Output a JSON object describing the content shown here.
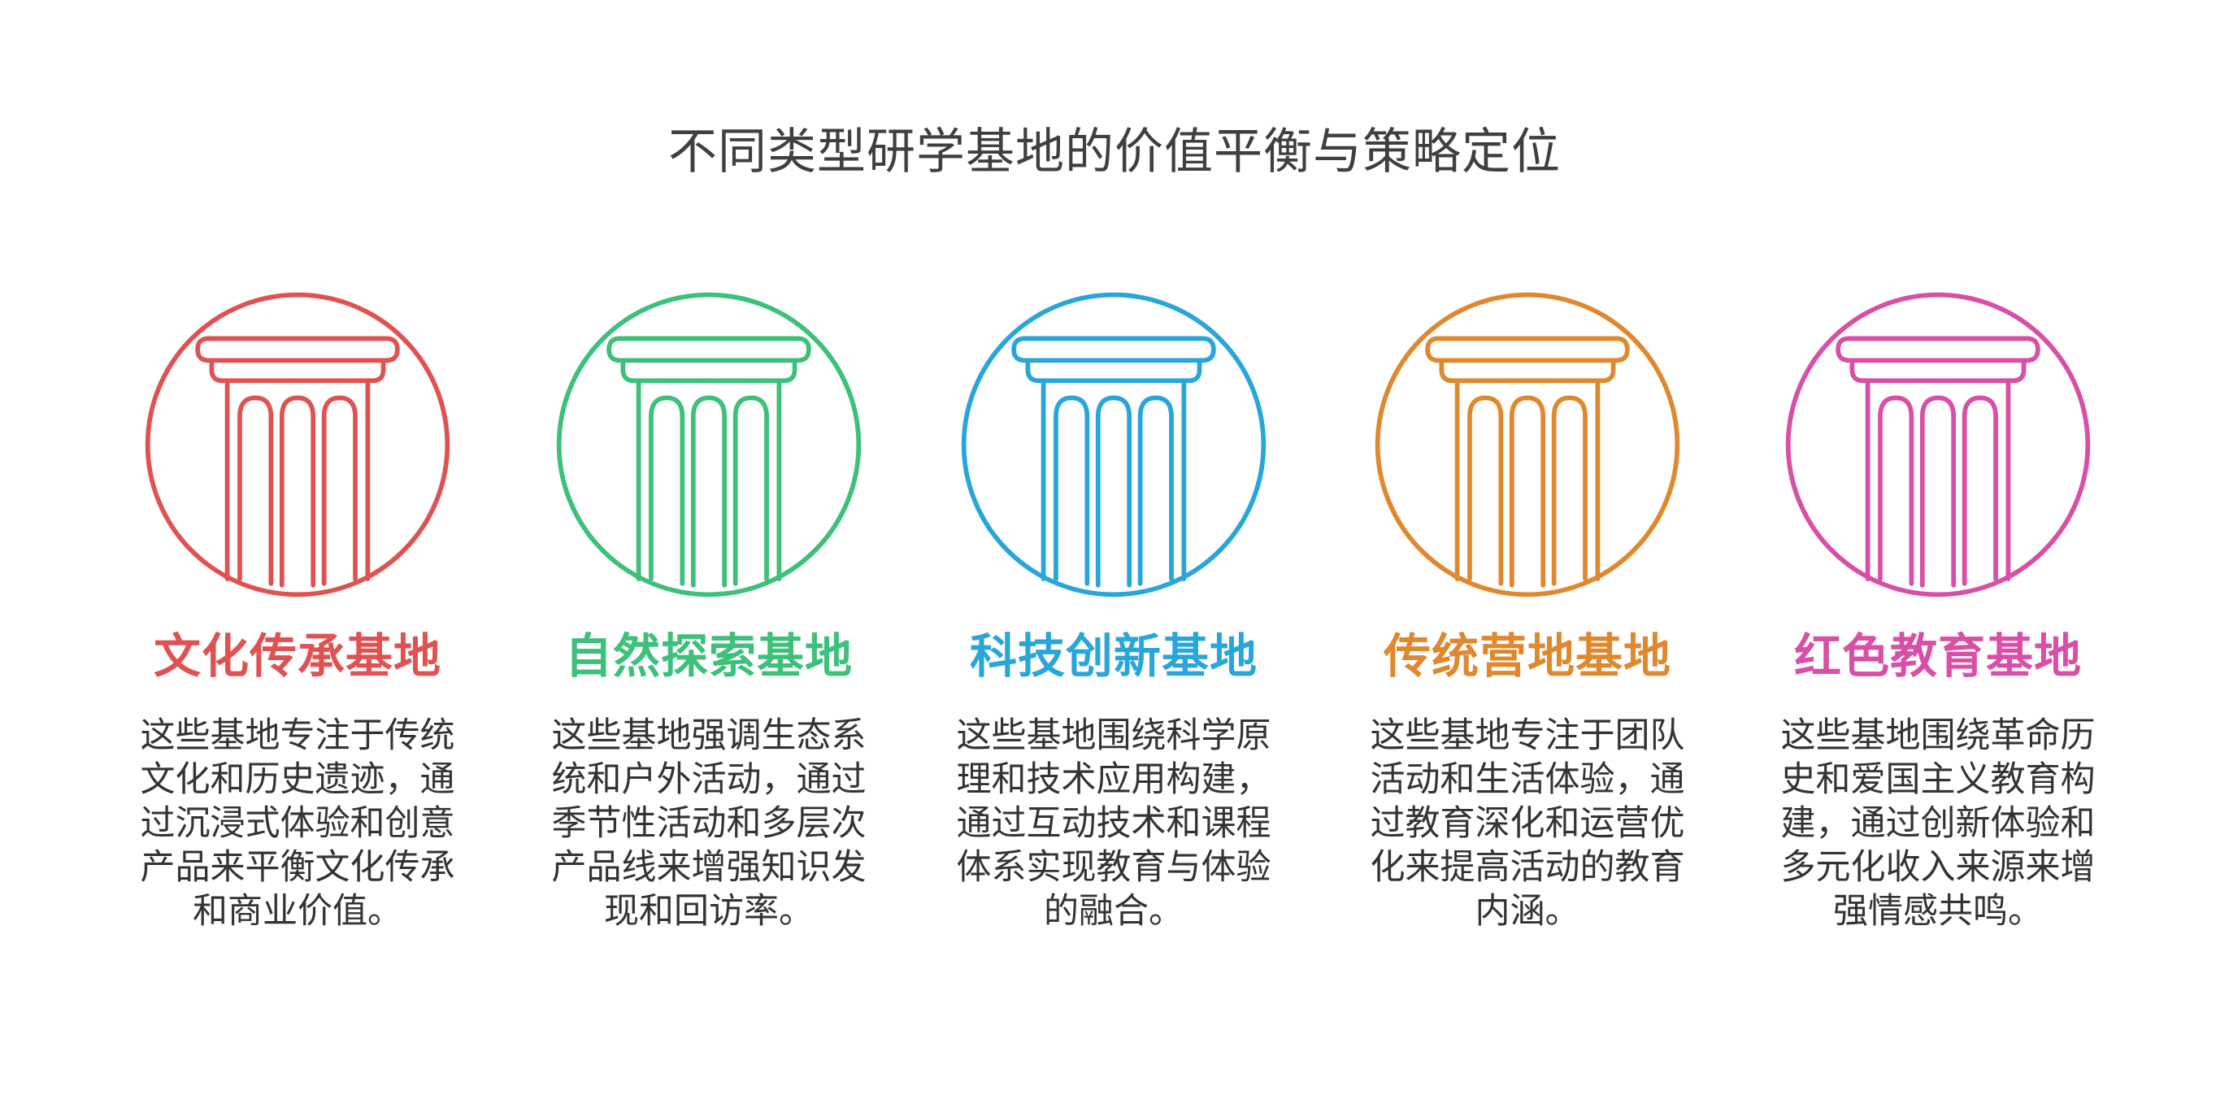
{
  "title": "不同类型研学基地的价值平衡与策略定位",
  "items": [
    {
      "name": "文化传承基地",
      "color": "#e05252",
      "icon": "pillar-icon",
      "description": "这些基地专注于传统文化和历史遗迹，通过沉浸式体验和创意产品来平衡文化传承和商业价值。"
    },
    {
      "name": "自然探索基地",
      "color": "#3cc07a",
      "icon": "pillar-icon",
      "description": "这些基地强调生态系统和户外活动，通过季节性活动和多层次产品线来增强知识发现和回访率。"
    },
    {
      "name": "科技创新基地",
      "color": "#29a6d9",
      "icon": "pillar-icon",
      "description": "这些基地围绕科学原理和技术应用构建，通过互动技术和课程体系实现教育与体验的融合。"
    },
    {
      "name": "传统营地基地",
      "color": "#e0882e",
      "icon": "pillar-icon",
      "description": "这些基地专注于团队活动和生活体验，通过教育深化和运营优化来提高活动的教育内涵。"
    },
    {
      "name": "红色教育基地",
      "color": "#d94ea6",
      "icon": "pillar-icon",
      "description": "这些基地围绕革命历史和爱国主义教育构建，通过创新体验和多元化收入来源来增强情感共鸣。"
    }
  ]
}
